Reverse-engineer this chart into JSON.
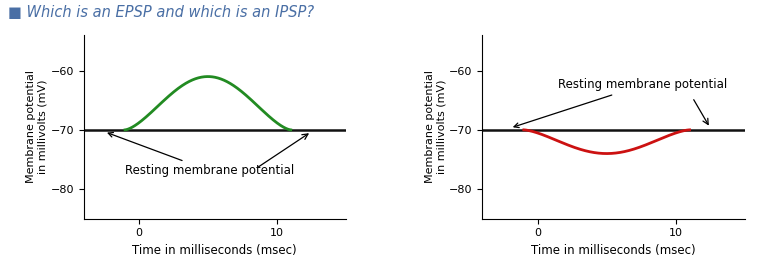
{
  "title": "Which is an EPSP and which is an IPSP?",
  "title_color": "#4a6fa5",
  "title_fontsize": 10.5,
  "bg_color": "#ffffff",
  "ylabel": "Membrane potential\nin millivolts (mV)",
  "xlabel": "Time in milliseconds (msec)",
  "ylim": [
    -85,
    -54
  ],
  "yticks": [
    -80,
    -70,
    -60
  ],
  "xticks": [
    0,
    10
  ],
  "xlim": [
    -4,
    15
  ],
  "resting_v": -70,
  "epsp_peak": -61,
  "ipsp_trough": -74,
  "epsp_color": "#228B22",
  "ipsp_color": "#cc1111",
  "resting_color": "#111111",
  "annotation_text": "Resting membrane potential",
  "annotation_fontsize": 8.5
}
